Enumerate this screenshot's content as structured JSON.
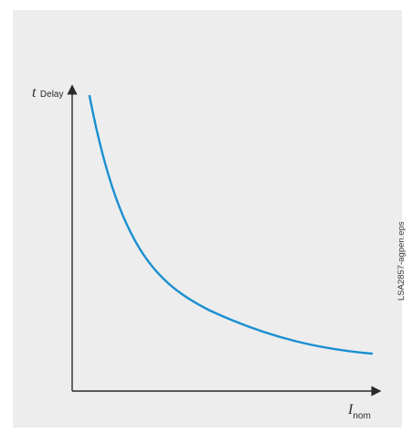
{
  "diagram": {
    "y_axis": {
      "symbol": "t",
      "subscript": "Delay"
    },
    "x_axis": {
      "symbol": "I",
      "subscript": "nom"
    },
    "file_label": "LSA2857-agpen.eps",
    "curve_color": "#1a8fd0",
    "axis_color": "#2a2a2a",
    "panel_color": "#ededee"
  }
}
